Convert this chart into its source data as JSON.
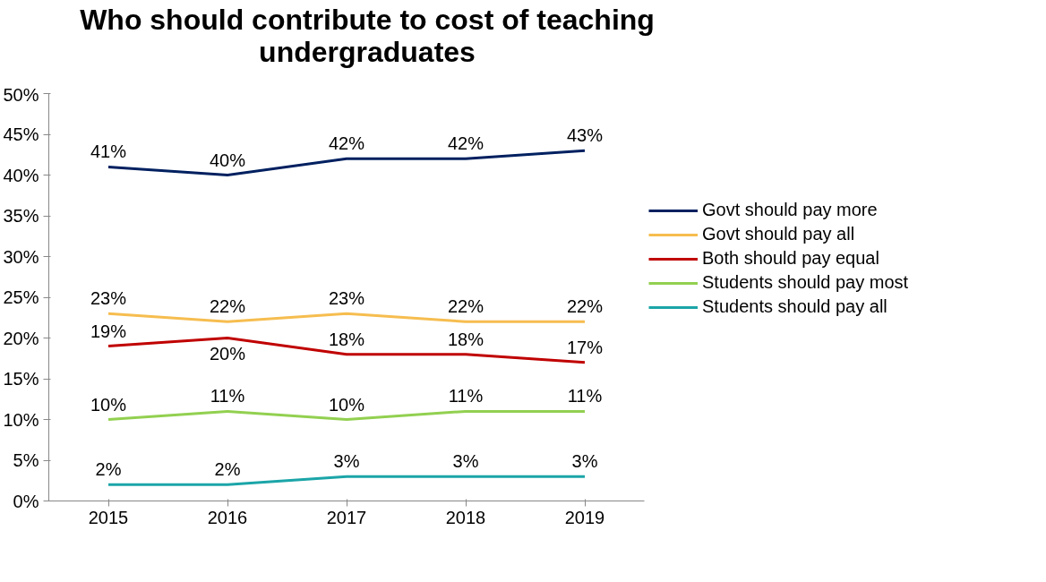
{
  "chart_data": {
    "type": "line",
    "title": "Who should contribute to cost of teaching\nundergraduates",
    "categories": [
      "2015",
      "2016",
      "2017",
      "2018",
      "2019"
    ],
    "series": [
      {
        "name": "Govt should pay more",
        "color": "#002060",
        "values": [
          41,
          40,
          42,
          42,
          43
        ],
        "value_labels": [
          "41%",
          "40%",
          "42%",
          "42%",
          "43%"
        ]
      },
      {
        "name": "Govt should pay all",
        "color": "#f6bd4f",
        "values": [
          23,
          22,
          23,
          22,
          22
        ],
        "value_labels": [
          "23%",
          "22%",
          "23%",
          "22%",
          "22%"
        ]
      },
      {
        "name": "Both should pay equal",
        "color": "#c00000",
        "values": [
          19,
          20,
          18,
          18,
          17
        ],
        "value_labels": [
          "19%",
          "20%",
          "18%",
          "18%",
          "17%"
        ]
      },
      {
        "name": "Students should pay most",
        "color": "#92d050",
        "values": [
          10,
          11,
          10,
          11,
          11
        ],
        "value_labels": [
          "10%",
          "11%",
          "10%",
          "11%",
          "11%"
        ]
      },
      {
        "name": "Students should pay all",
        "color": "#1ba5a8",
        "values": [
          2,
          2,
          3,
          3,
          3
        ],
        "value_labels": [
          "2%",
          "2%",
          "3%",
          "3%",
          "3%"
        ]
      }
    ],
    "ylim": [
      0,
      50
    ],
    "yticks": [
      {
        "value": 0,
        "label": "0%"
      },
      {
        "value": 5,
        "label": "5%"
      },
      {
        "value": 10,
        "label": "10%"
      },
      {
        "value": 15,
        "label": "15%"
      },
      {
        "value": 20,
        "label": "20%"
      },
      {
        "value": 25,
        "label": "25%"
      },
      {
        "value": 30,
        "label": "30%"
      },
      {
        "value": 35,
        "label": "35%"
      },
      {
        "value": 40,
        "label": "40%"
      },
      {
        "value": 45,
        "label": "45%"
      },
      {
        "value": 50,
        "label": "50%"
      }
    ],
    "data_labels": true,
    "grid": false,
    "legend": "right",
    "marker": "none",
    "line_style": "solid"
  }
}
